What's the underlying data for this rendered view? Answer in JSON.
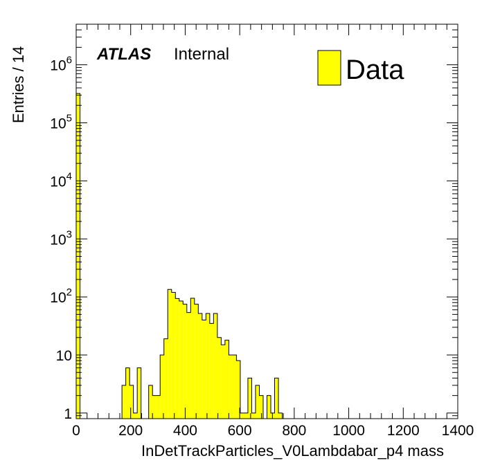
{
  "chart_data": {
    "type": "bar",
    "xlabel": "InDetTrackParticles_V0Lambdabar_p4 mass",
    "ylabel": "Entries / 14",
    "xlim": [
      0,
      1400
    ],
    "ylog": true,
    "ylim": [
      0.8,
      5000000
    ],
    "bin_width": 14,
    "x_ticks": [
      0,
      200,
      400,
      600,
      800,
      1000,
      1200,
      1400
    ],
    "y_ticks": [
      {
        "value": 1,
        "base": "1",
        "exp": ""
      },
      {
        "value": 10,
        "base": "10",
        "exp": ""
      },
      {
        "value": 100,
        "base": "10",
        "exp": "2"
      },
      {
        "value": 1000,
        "base": "10",
        "exp": "3"
      },
      {
        "value": 10000,
        "base": "10",
        "exp": "4"
      },
      {
        "value": 100000,
        "base": "10",
        "exp": "5"
      },
      {
        "value": 1000000,
        "base": "10",
        "exp": "6"
      }
    ],
    "series": [
      {
        "name": "Data",
        "color": "#ffff00",
        "bins": [
          {
            "x": 0,
            "y": 320000
          },
          {
            "x": 168,
            "y": 3
          },
          {
            "x": 182,
            "y": 6
          },
          {
            "x": 196,
            "y": 3
          },
          {
            "x": 210,
            "y": 1
          },
          {
            "x": 224,
            "y": 6
          },
          {
            "x": 266,
            "y": 3
          },
          {
            "x": 280,
            "y": 2
          },
          {
            "x": 294,
            "y": 2
          },
          {
            "x": 308,
            "y": 10
          },
          {
            "x": 322,
            "y": 19
          },
          {
            "x": 336,
            "y": 135
          },
          {
            "x": 350,
            "y": 120
          },
          {
            "x": 364,
            "y": 94
          },
          {
            "x": 378,
            "y": 85
          },
          {
            "x": 392,
            "y": 75
          },
          {
            "x": 406,
            "y": 54
          },
          {
            "x": 420,
            "y": 95
          },
          {
            "x": 434,
            "y": 75
          },
          {
            "x": 448,
            "y": 52
          },
          {
            "x": 462,
            "y": 40
          },
          {
            "x": 476,
            "y": 52
          },
          {
            "x": 490,
            "y": 35
          },
          {
            "x": 504,
            "y": 52
          },
          {
            "x": 518,
            "y": 20
          },
          {
            "x": 532,
            "y": 15
          },
          {
            "x": 546,
            "y": 18
          },
          {
            "x": 560,
            "y": 10
          },
          {
            "x": 574,
            "y": 10
          },
          {
            "x": 588,
            "y": 8
          },
          {
            "x": 602,
            "y": 1
          },
          {
            "x": 616,
            "y": 1
          },
          {
            "x": 630,
            "y": 4
          },
          {
            "x": 644,
            "y": 1
          },
          {
            "x": 658,
            "y": 3
          },
          {
            "x": 672,
            "y": 2
          },
          {
            "x": 700,
            "y": 2
          },
          {
            "x": 714,
            "y": 1
          },
          {
            "x": 728,
            "y": 4
          },
          {
            "x": 742,
            "y": 1
          }
        ]
      }
    ],
    "legend": {
      "position": "top-right",
      "entries": [
        {
          "label": "Data",
          "color": "#ffff00"
        }
      ]
    },
    "annotation": {
      "bold_italic": "ATLAS",
      "normal": "Internal"
    },
    "grid": false
  }
}
